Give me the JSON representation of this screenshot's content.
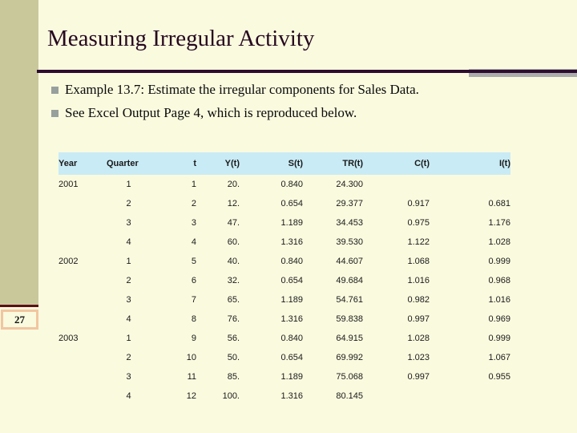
{
  "slide": {
    "title": "Measuring Irregular Activity",
    "page_number": "27",
    "bullets": [
      "Example 13.7: Estimate the irregular components for Sales Data.",
      "See Excel Output Page 4, which is reproduced below."
    ]
  },
  "table": {
    "headers": [
      "Year",
      "Quarter",
      "t",
      "Y(t)",
      "S(t)",
      "TR(t)",
      "C(t)",
      "I(t)"
    ],
    "rows": [
      [
        "2001",
        "1",
        "1",
        "20.",
        "0.840",
        "24.300",
        "",
        ""
      ],
      [
        "",
        "2",
        "2",
        "12.",
        "0.654",
        "29.377",
        "0.917",
        "0.681"
      ],
      [
        "",
        "3",
        "3",
        "47.",
        "1.189",
        "34.453",
        "0.975",
        "1.176"
      ],
      [
        "",
        "4",
        "4",
        "60.",
        "1.316",
        "39.530",
        "1.122",
        "1.028"
      ],
      [
        "2002",
        "1",
        "5",
        "40.",
        "0.840",
        "44.607",
        "1.068",
        "0.999"
      ],
      [
        "",
        "2",
        "6",
        "32.",
        "0.654",
        "49.684",
        "1.016",
        "0.968"
      ],
      [
        "",
        "3",
        "7",
        "65.",
        "1.189",
        "54.761",
        "0.982",
        "1.016"
      ],
      [
        "",
        "4",
        "8",
        "76.",
        "1.316",
        "59.838",
        "0.997",
        "0.969"
      ],
      [
        "2003",
        "1",
        "9",
        "56.",
        "0.840",
        "64.915",
        "1.028",
        "0.999"
      ],
      [
        "",
        "2",
        "10",
        "50.",
        "0.654",
        "69.992",
        "1.023",
        "1.067"
      ],
      [
        "",
        "3",
        "11",
        "85.",
        "1.189",
        "75.068",
        "0.997",
        "0.955"
      ],
      [
        "",
        "4",
        "12",
        "100.",
        "1.316",
        "80.145",
        "",
        ""
      ]
    ]
  },
  "colors": {
    "background": "#FAFADF",
    "left_stripe": "#C8C89B",
    "stripe_rule": "#5C1016",
    "title_rule": "#2D0C2F",
    "accent_gray": "#ACACAC",
    "table_header_fill": "#C9EBF5",
    "page_box_border": "#F2C6A0",
    "bullet_gray": "#98A09E"
  }
}
